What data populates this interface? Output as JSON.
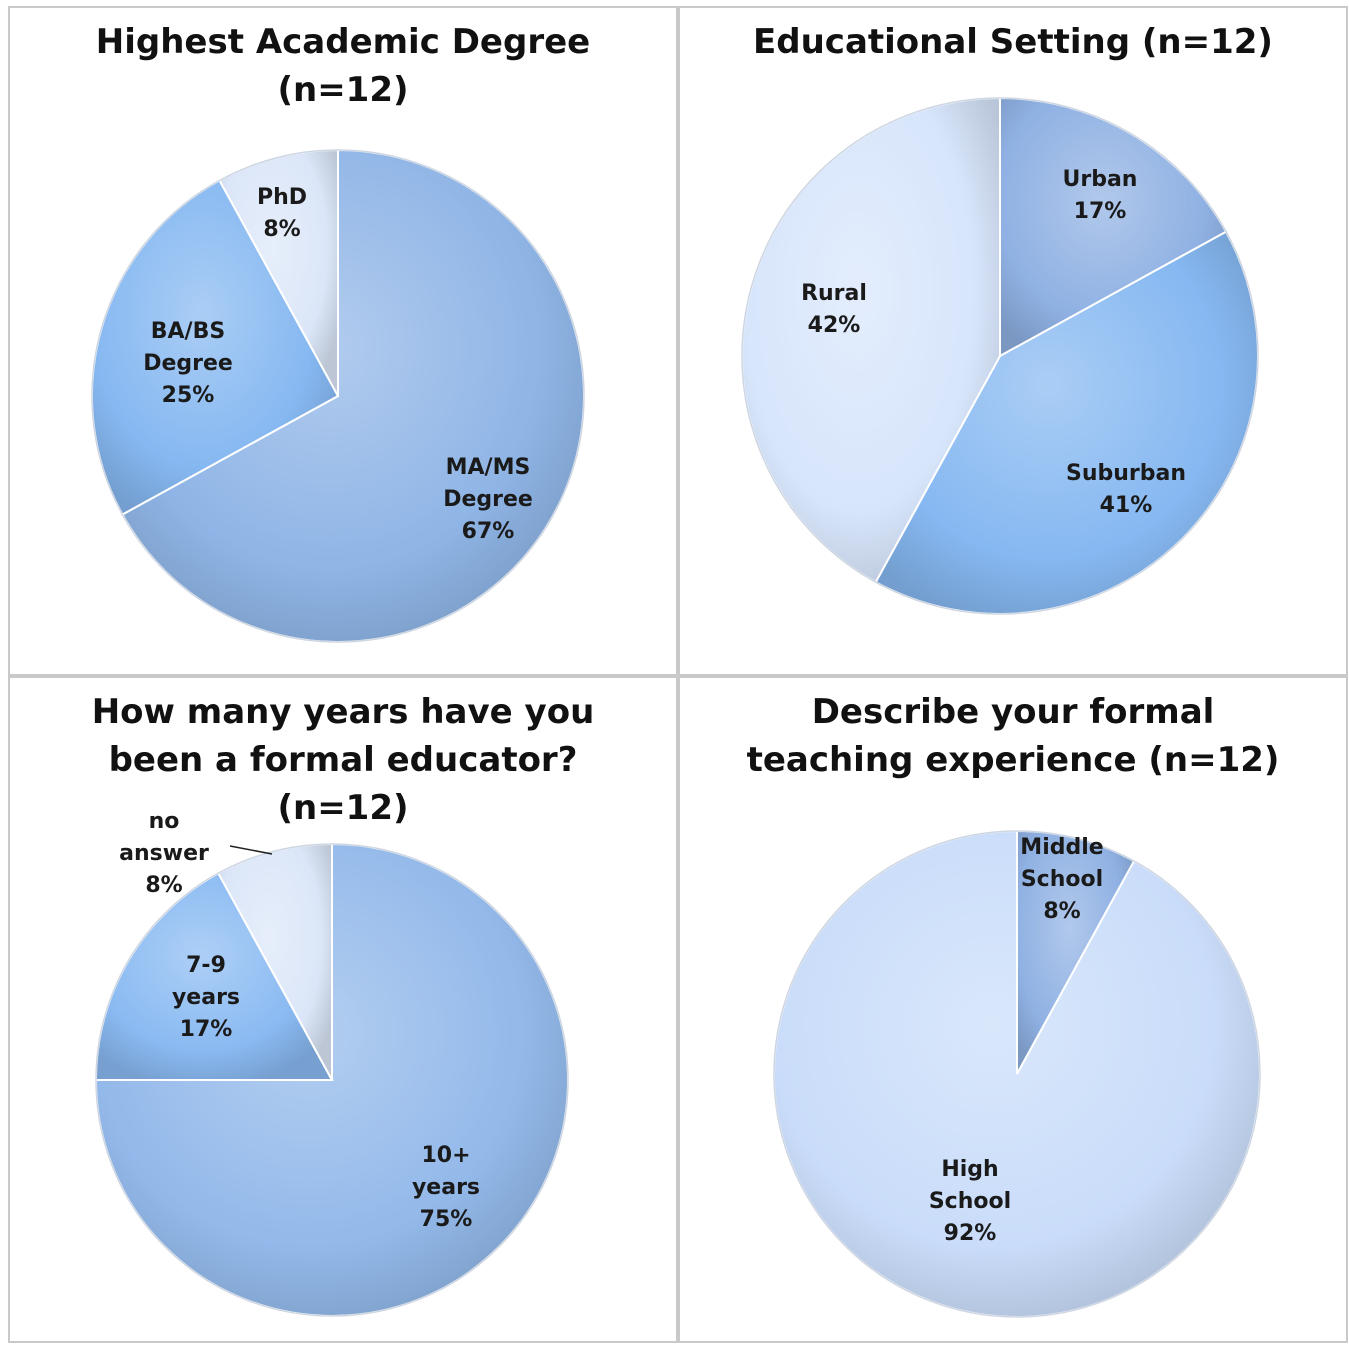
{
  "chart_data": [
    {
      "type": "pie",
      "title": "Highest Academic Degree\n(n=12)",
      "slices": [
        {
          "label": "MA/MS Degree",
          "value": 67,
          "percent_label": "67%",
          "color": "#8fb5e6"
        },
        {
          "label": "BA/BS Degree",
          "value": 25,
          "percent_label": "25%",
          "color": "#86b8f1"
        },
        {
          "label": "PhD",
          "value": 8,
          "percent_label": "8%",
          "color": "#dbe6f8"
        }
      ]
    },
    {
      "type": "pie",
      "title": "Educational Setting (n=12)",
      "slices": [
        {
          "label": "Urban",
          "value": 17,
          "percent_label": "17%",
          "color": "#8fb1e3"
        },
        {
          "label": "Suburban",
          "value": 41,
          "percent_label": "41%",
          "color": "#86b8f1"
        },
        {
          "label": "Rural",
          "value": 42,
          "percent_label": "42%",
          "color": "#d7e5fb"
        }
      ]
    },
    {
      "type": "pie",
      "title": "How many years have you\nbeen a formal educator?\n(n=12)",
      "slices": [
        {
          "label": "10+ years",
          "value": 75,
          "percent_label": "75%",
          "color": "#93b9ea"
        },
        {
          "label": "7-9 years",
          "value": 17,
          "percent_label": "17%",
          "color": "#8abaf2"
        },
        {
          "label": "no answer",
          "value": 8,
          "percent_label": "8%",
          "color": "#dbe6f8"
        }
      ]
    },
    {
      "type": "pie",
      "title": "Describe your formal\nteaching experience (n=12)",
      "slices": [
        {
          "label": "Middle School",
          "value": 8,
          "percent_label": "8%",
          "color": "#8fb1e3"
        },
        {
          "label": "High School",
          "value": 92,
          "percent_label": "92%",
          "color": "#c9dcf9"
        }
      ]
    }
  ]
}
